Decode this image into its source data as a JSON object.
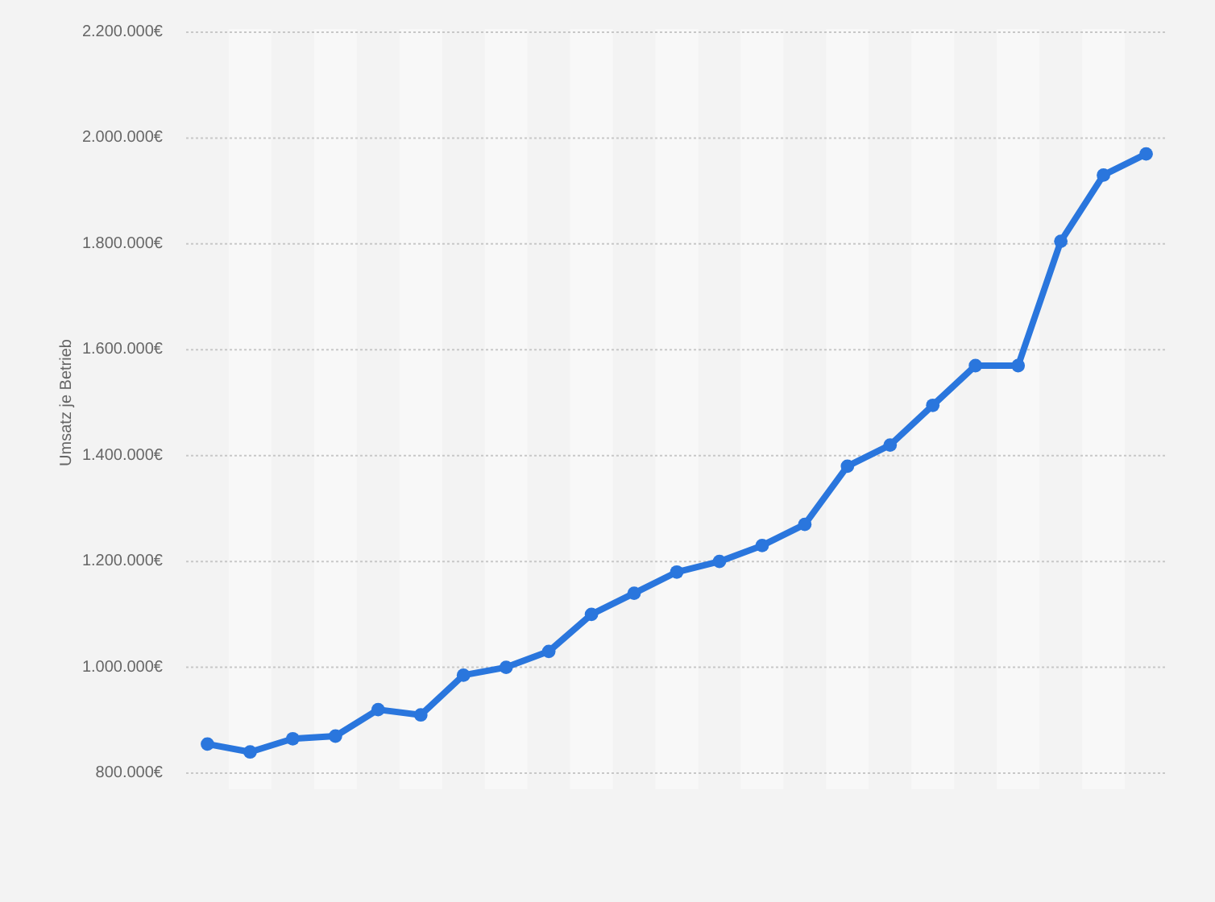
{
  "chart_data": {
    "type": "line",
    "ylabel": "Umsatz je Betrieb",
    "categories": [
      null,
      null,
      null,
      null,
      null,
      null,
      null,
      null,
      null,
      null,
      null,
      null,
      null,
      null,
      null,
      null,
      null,
      null,
      null,
      null,
      null,
      null,
      null
    ],
    "values": [
      855000,
      840000,
      865000,
      870000,
      920000,
      910000,
      985000,
      1000000,
      1030000,
      1100000,
      1140000,
      1180000,
      1200000,
      1230000,
      1270000,
      1380000,
      1420000,
      1495000,
      1570000,
      1570000,
      1805000,
      1930000,
      1970000
    ],
    "color": "#2a76dd",
    "ylim": [
      800000,
      2200000
    ],
    "yticks": [
      {
        "value": 800000,
        "label": "800.000€"
      },
      {
        "value": 1000000,
        "label": "1.000.000€"
      },
      {
        "value": 1200000,
        "label": "1.200.000€"
      },
      {
        "value": 1400000,
        "label": "1.400.000€"
      },
      {
        "value": 1600000,
        "label": "1.600.000€"
      },
      {
        "value": 1800000,
        "label": "1.800.000€"
      },
      {
        "value": 2000000,
        "label": "2.000.000€"
      },
      {
        "value": 2200000,
        "label": "2.200.000€"
      }
    ],
    "grid": "y",
    "tick_labels": "y",
    "marker": "circle",
    "line_style": "solid"
  }
}
